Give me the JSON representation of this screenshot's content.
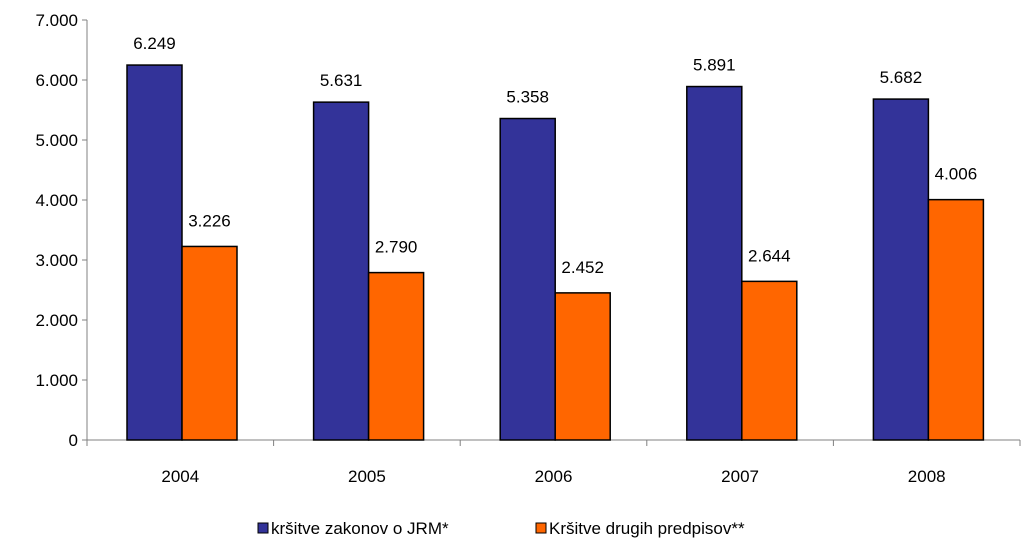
{
  "chart_data": {
    "type": "bar",
    "title": "",
    "xlabel": "",
    "ylabel": "",
    "categories": [
      "2004",
      "2005",
      "2006",
      "2007",
      "2008"
    ],
    "series": [
      {
        "name": "kršitve zakonov o JRM*",
        "values": [
          6249,
          5631,
          5358,
          5891,
          5682
        ],
        "labels": [
          "6.249",
          "5.631",
          "5.358",
          "5.891",
          "5.682"
        ],
        "color": "#333399"
      },
      {
        "name": "Kršitve drugih predpisov**",
        "values": [
          3226,
          2790,
          2452,
          2644,
          4006
        ],
        "labels": [
          "3.226",
          "2.790",
          "2.452",
          "2.644",
          "4.006"
        ],
        "color": "#FF6600"
      }
    ],
    "ylim": [
      0,
      7000
    ],
    "yticks": [
      0,
      1000,
      2000,
      3000,
      4000,
      5000,
      6000,
      7000
    ],
    "ytick_labels": [
      "0",
      "1.000",
      "2.000",
      "3.000",
      "4.000",
      "5.000",
      "6.000",
      "7.000"
    ],
    "grid": false,
    "legend_position": "bottom"
  }
}
